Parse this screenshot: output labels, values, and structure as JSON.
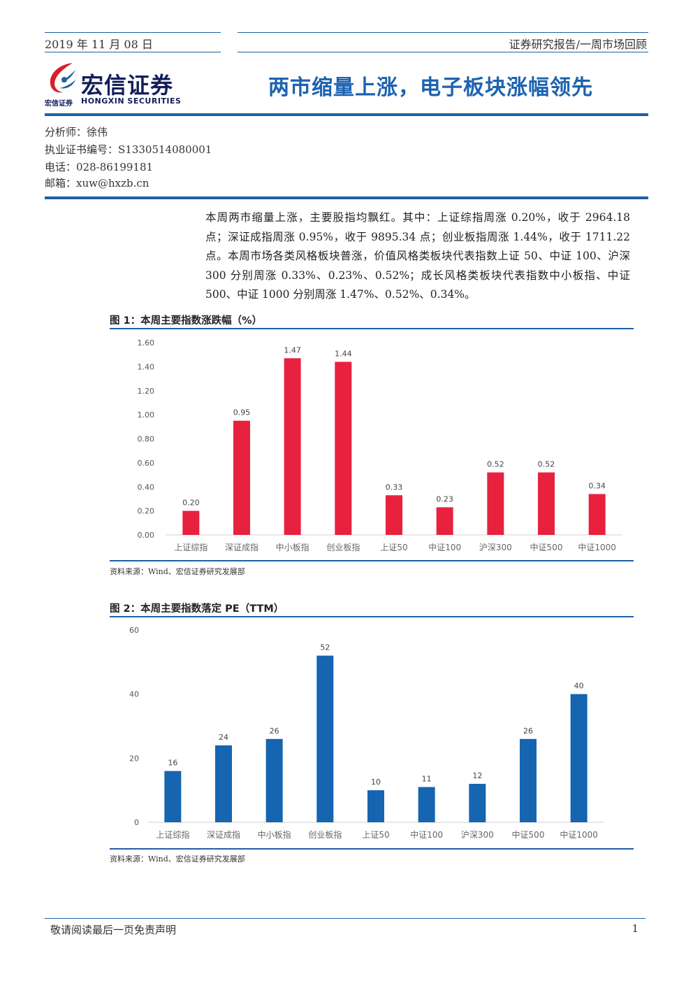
{
  "header": {
    "date": "2019 年 11 月 08 日",
    "report_type": "证券研究报告/一周市场回顾"
  },
  "logo": {
    "name_cn": "宏信证券",
    "small_cn": "宏信证券",
    "name_en": "HONGXIN SECURITIES"
  },
  "title": "两市缩量上涨，电子板块涨幅领先",
  "analyst": {
    "name": "分析师：徐伟",
    "license": "执业证书编号：S1330514080001",
    "phone": "电话：028-86199181",
    "email": "邮箱：xuw@hxzb.cn"
  },
  "summary": "本周两市缩量上涨，主要股指均飘红。其中：上证综指周涨 0.20%，收于 2964.18 点；深证成指周涨 0.95%，收于 9895.34 点；创业板指周涨 1.44%，收于 1711.22 点。本周市场各类风格板块普涨，价值风格类板块代表指数上证 50、中证 100、沪深 300 分别周涨 0.33%、0.23%、0.52%；成长风格类板块代表指数中小板指、中证 500、中证 1000 分别周涨 1.47%、0.52%、0.34%。",
  "figures": [
    {
      "title": "图 1：本周主要指数涨跌幅（%）",
      "source": "资料来源：Wind、宏信证券研究发展部"
    },
    {
      "title": "图 2：本周主要指数落定 PE（TTM）",
      "source": "资料来源：Wind、宏信证券研究发展部"
    }
  ],
  "chart_data": [
    {
      "type": "bar",
      "title": "图 1：本周主要指数涨跌幅（%）",
      "categories": [
        "上证综指",
        "深证成指",
        "中小板指",
        "创业板指",
        "上证50",
        "中证100",
        "沪深300",
        "中证500",
        "中证1000"
      ],
      "values": [
        0.2,
        0.95,
        1.47,
        1.44,
        0.33,
        0.23,
        0.52,
        0.52,
        0.34
      ],
      "value_labels": [
        "0.20",
        "0.95",
        "1.47",
        "1.44",
        "0.33",
        "0.23",
        "0.52",
        "0.52",
        "0.34"
      ],
      "yticks": [
        "0.00",
        "0.20",
        "0.40",
        "0.60",
        "0.80",
        "1.00",
        "1.20",
        "1.40",
        "1.60"
      ],
      "ylim": [
        0,
        1.6
      ],
      "color": "#e8213f",
      "grid": false
    },
    {
      "type": "bar",
      "title": "图 2：本周主要指数落定 PE（TTM）",
      "categories": [
        "上证综指",
        "深证成指",
        "中小板指",
        "创业板指",
        "上证50",
        "中证100",
        "沪深300",
        "中证500",
        "中证1000"
      ],
      "values": [
        16,
        24,
        26,
        52,
        10,
        11,
        12,
        26,
        40
      ],
      "value_labels": [
        "16",
        "24",
        "26",
        "52",
        "10",
        "11",
        "12",
        "26",
        "40"
      ],
      "yticks": [
        "0",
        "20",
        "40",
        "60"
      ],
      "ylim": [
        0,
        60
      ],
      "color": "#1565b0",
      "grid": false
    }
  ],
  "footer": {
    "disclaimer": "敬请阅读最后一页免责声明",
    "page": "1"
  },
  "colors": {
    "brand_blue": "#1f5fa8",
    "title_blue": "#1d63b0",
    "logo_red": "#d6202a"
  }
}
